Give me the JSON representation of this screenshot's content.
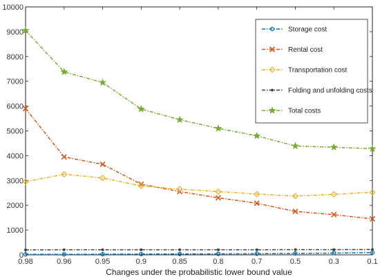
{
  "chart_data": {
    "type": "line",
    "title": "",
    "xlabel": "Changes under the probabilistic lower bound value",
    "ylabel": "",
    "categories": [
      "0.98",
      "0.96",
      "0.95",
      "0.9",
      "0.85",
      "0.8",
      "0.7",
      "0.5",
      "0.3",
      "0.1"
    ],
    "ylim": [
      0,
      10000
    ],
    "yticks": [
      0,
      1000,
      2000,
      3000,
      4000,
      5000,
      6000,
      7000,
      8000,
      9000,
      10000
    ],
    "grid": false,
    "legend_position": "top-right",
    "series": [
      {
        "name": "Storage cost",
        "color": "#0072BD",
        "marker": "circle",
        "values": [
          20,
          20,
          25,
          30,
          35,
          40,
          45,
          55,
          70,
          90
        ]
      },
      {
        "name": "Rental cost",
        "color": "#D95319",
        "marker": "x",
        "values": [
          5900,
          3950,
          3650,
          2850,
          2550,
          2300,
          2080,
          1750,
          1620,
          1450
        ]
      },
      {
        "name": "Transportation cost",
        "color": "#EDB120",
        "marker": "diamond",
        "values": [
          2950,
          3250,
          3100,
          2780,
          2650,
          2550,
          2450,
          2370,
          2440,
          2520
        ]
      },
      {
        "name": "Folding and unfolding costs",
        "color": "#404040",
        "marker": "point",
        "values": [
          200,
          205,
          205,
          205,
          205,
          205,
          205,
          210,
          210,
          215
        ]
      },
      {
        "name": "Total costs",
        "color": "#77AC30",
        "marker": "star",
        "values": [
          9050,
          7380,
          6950,
          5880,
          5450,
          5100,
          4800,
          4390,
          4340,
          4280
        ]
      }
    ]
  }
}
